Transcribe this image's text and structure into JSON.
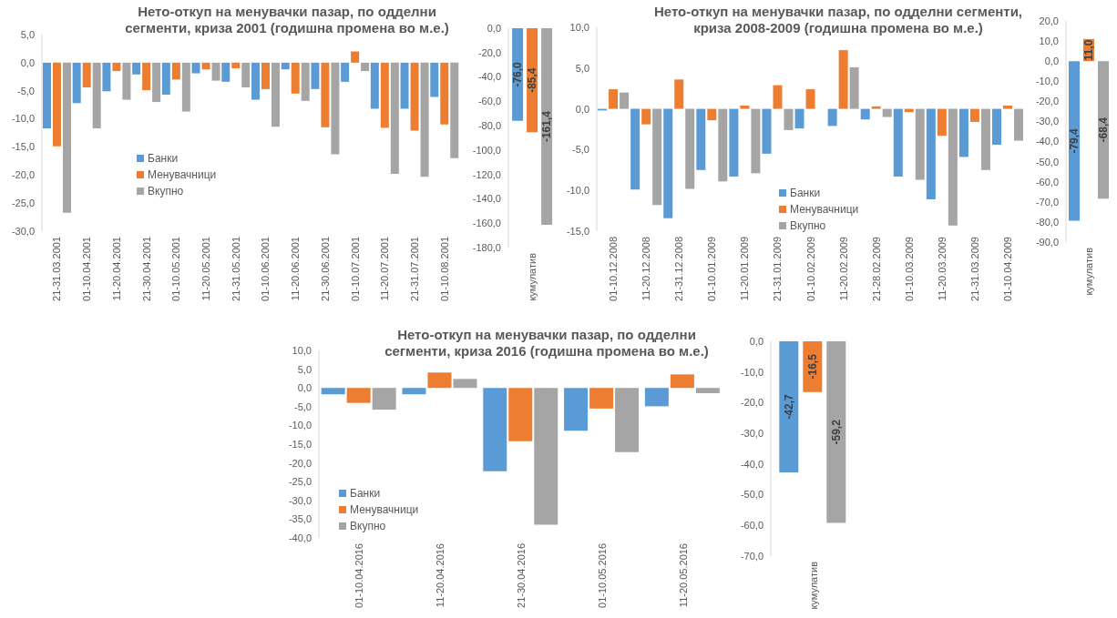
{
  "chart_data": [
    {
      "type": "bar",
      "title": "Нето-откуп на менувачки пазар, по одделни сегменти, криза 2001 (годишна промена во м.е.)",
      "categories": [
        "21-31.03.2001",
        "01-10.04.2001",
        "11-20.04.2001",
        "21-30.04.2001",
        "01-10.05.2001",
        "11-20.05.2001",
        "21-31.05.2001",
        "01-10.06.2001",
        "11-20.06.2001",
        "21-30.06.2001",
        "01-10.07.2001",
        "11-20.07.2001",
        "21-31.07.2001",
        "01-10.08.2001"
      ],
      "series": [
        {
          "name": "Банки",
          "color": "#5b9bd5",
          "values": [
            -11.7,
            -7.2,
            -5.1,
            -2.1,
            -5.7,
            -1.9,
            -3.4,
            -6.6,
            -1.2,
            -4.7,
            -3.4,
            -8.2,
            -8.2,
            -6.1
          ]
        },
        {
          "name": "Менувачници",
          "color": "#ed7d31",
          "values": [
            -14.9,
            -4.4,
            -1.5,
            -4.9,
            -3.0,
            -1.2,
            -1.0,
            -4.7,
            -5.5,
            -11.5,
            2.0,
            -11.6,
            -12.1,
            -11.0
          ]
        },
        {
          "name": "Вкупно",
          "color": "#a5a5a5",
          "values": [
            -26.7,
            -11.7,
            -6.6,
            -7.0,
            -8.7,
            -3.2,
            -4.4,
            -11.4,
            -6.8,
            -16.3,
            -1.5,
            -19.8,
            -20.3,
            -17.0
          ]
        }
      ],
      "ylim": [
        -30,
        5
      ],
      "yticks": [
        {
          "value": 5,
          "label": "5,0"
        },
        {
          "value": 0,
          "label": "0,0"
        },
        {
          "value": -5,
          "label": "-5,0"
        },
        {
          "value": -10,
          "label": "-10,0"
        },
        {
          "value": -15,
          "label": "-15,0"
        },
        {
          "value": -20,
          "label": "-20,0"
        },
        {
          "value": -25,
          "label": "-25,0"
        },
        {
          "value": -30,
          "label": "-30,0"
        }
      ],
      "legend": "left"
    },
    {
      "type": "bar",
      "categories": [
        "кумулатив"
      ],
      "series": [
        {
          "color": "#5b9bd5",
          "values": [
            -76.0
          ],
          "value_labels": [
            "-76,0"
          ]
        },
        {
          "color": "#ed7d31",
          "values": [
            -85.4
          ],
          "value_labels": [
            "-85,4"
          ]
        },
        {
          "color": "#a5a5a5",
          "values": [
            -161.4
          ],
          "value_labels": [
            "-161,4"
          ]
        }
      ],
      "ylim": [
        -180,
        0
      ],
      "yticks": [
        {
          "value": 0,
          "label": "0,0"
        },
        {
          "value": -20,
          "label": "-20,0"
        },
        {
          "value": -40,
          "label": "-40,0"
        },
        {
          "value": -60,
          "label": "-60,0"
        },
        {
          "value": -80,
          "label": "-80,0"
        },
        {
          "value": -100,
          "label": "-100,0"
        },
        {
          "value": -120,
          "label": "-120,0"
        },
        {
          "value": -140,
          "label": "-140,0"
        },
        {
          "value": -160,
          "label": "-160,0"
        },
        {
          "value": -180,
          "label": "-180,0"
        }
      ]
    },
    {
      "type": "bar",
      "title": "Нето-откуп на менувачки пазар, по одделни сегменти, криза 2008-2009 (годишна промена во м.е.)",
      "categories": [
        "01-10.12.2008",
        "11-20.12.2008",
        "21-31.12.2008",
        "01-10.01.2009",
        "11-20.01.2009",
        "21-31.01.2009",
        "01-10.02.2009",
        "11-20.02.2009",
        "21-28.02.2009",
        "01-10.03.2009",
        "11-20.03.2009",
        "21-31.03.2009",
        "01-10.04.2009"
      ],
      "series": [
        {
          "name": "Банки",
          "color": "#5b9bd5",
          "values": [
            -0.2,
            -9.9,
            -13.4,
            -7.5,
            -8.3,
            -5.5,
            -2.4,
            -2.1,
            -1.3,
            -8.3,
            -11.1,
            -5.9,
            -4.4
          ]
        },
        {
          "name": "Менувачници",
          "color": "#ed7d31",
          "values": [
            2.4,
            -1.9,
            3.6,
            -1.4,
            0.4,
            2.9,
            2.4,
            7.2,
            0.3,
            -0.4,
            -3.3,
            -1.6,
            0.4
          ]
        },
        {
          "name": "Вкупно",
          "color": "#a5a5a5",
          "values": [
            2.0,
            -11.8,
            -9.8,
            -8.9,
            -7.9,
            -2.6,
            0,
            5.1,
            -1.0,
            -8.7,
            -14.3,
            -7.5,
            -3.9
          ]
        }
      ],
      "ylim": [
        -15,
        10
      ],
      "yticks": [
        {
          "value": 10,
          "label": "10,0"
        },
        {
          "value": 5,
          "label": "5,0"
        },
        {
          "value": 0,
          "label": "0,0"
        },
        {
          "value": -5,
          "label": "-5,0"
        },
        {
          "value": -10,
          "label": "-10,0"
        },
        {
          "value": -15,
          "label": "-15,0"
        }
      ],
      "legend": "bottom"
    },
    {
      "type": "bar",
      "categories": [
        "кумулатив"
      ],
      "series": [
        {
          "color": "#5b9bd5",
          "values": [
            -79.4
          ],
          "value_labels": [
            "-79,4"
          ]
        },
        {
          "color": "#ed7d31",
          "values": [
            11.0
          ],
          "value_labels": [
            "11,0"
          ]
        },
        {
          "color": "#a5a5a5",
          "values": [
            -68.4
          ],
          "value_labels": [
            "-68,4"
          ]
        }
      ],
      "ylim": [
        -90,
        20
      ],
      "yticks": [
        {
          "value": 20,
          "label": "20,0"
        },
        {
          "value": 10,
          "label": "10,0"
        },
        {
          "value": 0,
          "label": "0,0"
        },
        {
          "value": -10,
          "label": "-10,0"
        },
        {
          "value": -20,
          "label": "-20,0"
        },
        {
          "value": -30,
          "label": "-30,0"
        },
        {
          "value": -40,
          "label": "-40,0"
        },
        {
          "value": -50,
          "label": "-50,0"
        },
        {
          "value": -60,
          "label": "-60,0"
        },
        {
          "value": -70,
          "label": "-70,0"
        },
        {
          "value": -80,
          "label": "-80,0"
        },
        {
          "value": -90,
          "label": "-90,0"
        }
      ]
    },
    {
      "type": "bar",
      "title": "Нето-откуп на менувачки пазар, по одделни сегменти, криза 2016 (годишна промена во м.е.)",
      "categories": [
        "01-10.04.2016",
        "11-20.04.2016",
        "21-30.04.2016",
        "01-10.05.2016",
        "11-20.05.2016"
      ],
      "series": [
        {
          "name": "Банки",
          "color": "#5b9bd5",
          "values": [
            -1.7,
            -1.7,
            -22.2,
            -11.4,
            -4.9
          ]
        },
        {
          "name": "Менувачници",
          "color": "#ed7d31",
          "values": [
            -4.0,
            4.1,
            -14.2,
            -5.5,
            3.6
          ]
        },
        {
          "name": "Вкупно",
          "color": "#a5a5a5",
          "values": [
            -5.8,
            2.4,
            -36.5,
            -17.1,
            -1.4
          ]
        }
      ],
      "ylim": [
        -40,
        10
      ],
      "yticks": [
        {
          "value": 10,
          "label": "10,0"
        },
        {
          "value": 5,
          "label": "5,0"
        },
        {
          "value": 0,
          "label": "0,0"
        },
        {
          "value": -5,
          "label": "-5,0"
        },
        {
          "value": -10,
          "label": "-10,0"
        },
        {
          "value": -15,
          "label": "-15,0"
        },
        {
          "value": -20,
          "label": "-20,0"
        },
        {
          "value": -25,
          "label": "-25,0"
        },
        {
          "value": -30,
          "label": "-30,0"
        },
        {
          "value": -35,
          "label": "-35,0"
        },
        {
          "value": -40,
          "label": "-40,0"
        }
      ],
      "legend": "bottom left"
    },
    {
      "type": "bar",
      "categories": [
        "кумулатив"
      ],
      "series": [
        {
          "color": "#5b9bd5",
          "values": [
            -42.7
          ],
          "value_labels": [
            "-42,7"
          ]
        },
        {
          "color": "#ed7d31",
          "values": [
            -16.5
          ],
          "value_labels": [
            "-16,5"
          ]
        },
        {
          "color": "#a5a5a5",
          "values": [
            -59.2
          ],
          "value_labels": [
            "-59,2"
          ]
        }
      ],
      "ylim": [
        -70,
        0
      ],
      "yticks": [
        {
          "value": 0,
          "label": "0,0"
        },
        {
          "value": -10,
          "label": "-10,0"
        },
        {
          "value": -20,
          "label": "-20,0"
        },
        {
          "value": -30,
          "label": "-30,0"
        },
        {
          "value": -40,
          "label": "-40,0"
        },
        {
          "value": -50,
          "label": "-50,0"
        },
        {
          "value": -60,
          "label": "-60,0"
        },
        {
          "value": -70,
          "label": "-70,0"
        }
      ]
    }
  ]
}
